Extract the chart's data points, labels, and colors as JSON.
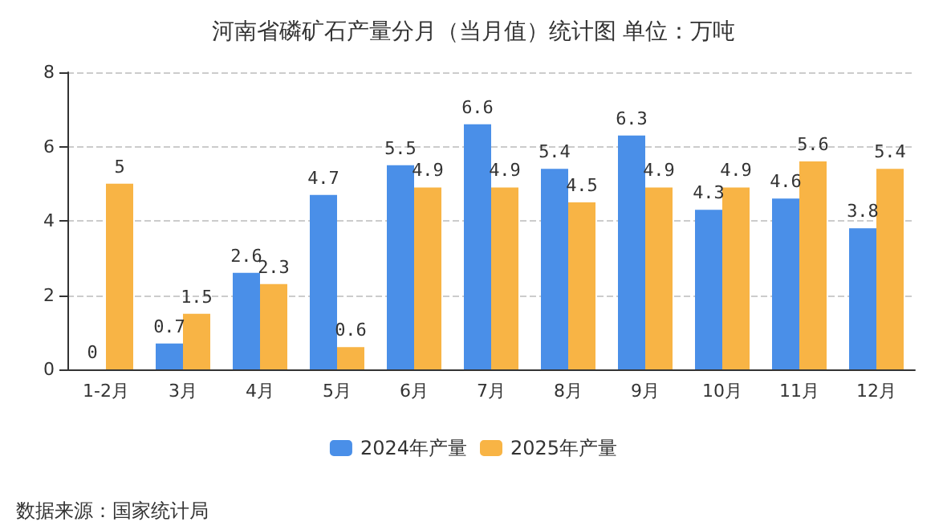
{
  "chart_data": {
    "type": "bar",
    "title": "河南省磷矿石产量分月（当月值）统计图 单位：万吨",
    "categories": [
      "1-2月",
      "3月",
      "4月",
      "5月",
      "6月",
      "7月",
      "8月",
      "9月",
      "10月",
      "11月",
      "12月"
    ],
    "series": [
      {
        "name": "2024年产量",
        "color": "#4a8fe8",
        "values": [
          0,
          0.7,
          2.6,
          4.7,
          5.5,
          6.6,
          5.4,
          6.3,
          4.3,
          4.6,
          3.8
        ]
      },
      {
        "name": "2025年产量",
        "color": "#f8b445",
        "values": [
          5,
          1.5,
          2.3,
          0.6,
          4.9,
          4.9,
          4.5,
          4.9,
          4.9,
          5.6,
          5.4
        ]
      }
    ],
    "ylim": [
      0,
      8
    ],
    "yticks": [
      0,
      2,
      4,
      6,
      8
    ],
    "grid": "y",
    "legend": "bottom",
    "data_labels": true,
    "annotations": [
      "数据来源：国家统计局"
    ]
  }
}
